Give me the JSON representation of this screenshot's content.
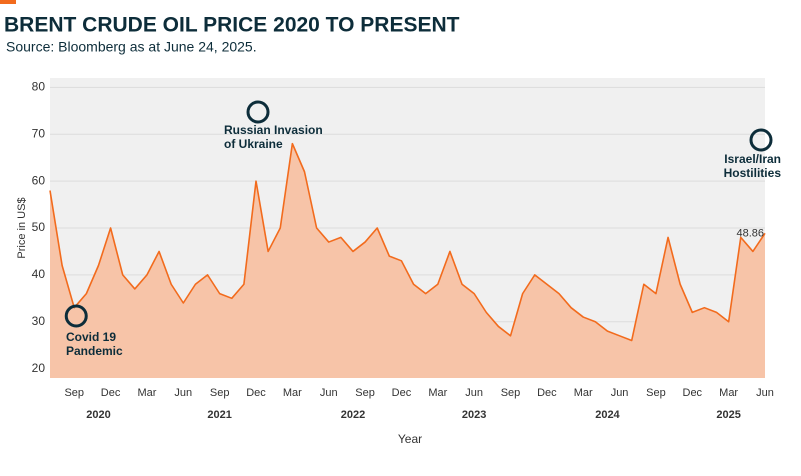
{
  "chart_data": {
    "type": "area",
    "title": "BRENT CRUDE OIL PRICE 2020 TO PRESENT",
    "subtitle": "Source: Bloomberg as at June 24, 2025.",
    "y_label": "Price in US$",
    "x_label": "Year",
    "x": [
      "2020-07",
      "2020-08",
      "2020-09",
      "2020-10",
      "2020-11",
      "2020-12",
      "2021-01",
      "2021-02",
      "2021-03",
      "2021-04",
      "2021-05",
      "2021-06",
      "2021-07",
      "2021-08",
      "2021-09",
      "2021-10",
      "2021-11",
      "2021-12",
      "2022-01",
      "2022-02",
      "2022-03",
      "2022-04",
      "2022-05",
      "2022-06",
      "2022-07",
      "2022-08",
      "2022-09",
      "2022-10",
      "2022-11",
      "2022-12",
      "2023-01",
      "2023-02",
      "2023-03",
      "2023-04",
      "2023-05",
      "2023-06",
      "2023-07",
      "2023-08",
      "2023-09",
      "2023-10",
      "2023-11",
      "2023-12",
      "2024-01",
      "2024-02",
      "2024-03",
      "2024-04",
      "2024-05",
      "2024-06",
      "2024-07",
      "2024-08",
      "2024-09",
      "2024-10",
      "2024-11",
      "2024-12",
      "2025-01",
      "2025-02",
      "2025-03",
      "2025-04",
      "2025-05",
      "2025-06"
    ],
    "series": [
      {
        "name": "Brent",
        "color": "#f26b1d",
        "fill": "#f7c4a8",
        "values": [
          58,
          42,
          33,
          36,
          42,
          50,
          40,
          37,
          40,
          45,
          38,
          34,
          38,
          40,
          36,
          35,
          38,
          60,
          45,
          50,
          68,
          62,
          50,
          47,
          48,
          45,
          47,
          50,
          44,
          43,
          38,
          36,
          38,
          45,
          38,
          36,
          32,
          29,
          27,
          36,
          40,
          38,
          36,
          33,
          31,
          30,
          28,
          27,
          26,
          38,
          36,
          48,
          38,
          32,
          33,
          32,
          30,
          48,
          45,
          48.86
        ]
      }
    ],
    "ylim": [
      18,
      82
    ],
    "yticks": [
      20,
      30,
      40,
      50,
      60,
      70,
      80
    ],
    "xticks": [
      {
        "value": "2020-09",
        "label": "Sep"
      },
      {
        "value": "2020-12",
        "label": "Dec"
      },
      {
        "value": "2021-03",
        "label": "Mar"
      },
      {
        "value": "2021-06",
        "label": "Jun"
      },
      {
        "value": "2021-09",
        "label": "Sep"
      },
      {
        "value": "2021-12",
        "label": "Dec"
      },
      {
        "value": "2022-03",
        "label": "Mar"
      },
      {
        "value": "2022-06",
        "label": "Jun"
      },
      {
        "value": "2022-09",
        "label": "Sep"
      },
      {
        "value": "2022-12",
        "label": "Dec"
      },
      {
        "value": "2023-03",
        "label": "Mar"
      },
      {
        "value": "2023-06",
        "label": "Jun"
      },
      {
        "value": "2023-09",
        "label": "Sep"
      },
      {
        "value": "2023-12",
        "label": "Dec"
      },
      {
        "value": "2024-03",
        "label": "Mar"
      },
      {
        "value": "2024-06",
        "label": "Jun"
      },
      {
        "value": "2024-09",
        "label": "Sep"
      },
      {
        "value": "2024-12",
        "label": "Dec"
      },
      {
        "value": "2025-03",
        "label": "Mar"
      },
      {
        "value": "2025-06",
        "label": "Jun"
      }
    ],
    "year_labels": [
      {
        "value": "2020-11",
        "label": "2020"
      },
      {
        "value": "2021-09",
        "label": "2021"
      },
      {
        "value": "2022-08",
        "label": "2022"
      },
      {
        "value": "2023-06",
        "label": "2023"
      },
      {
        "value": "2024-05",
        "label": "2024"
      },
      {
        "value": "2025-03",
        "label": "2025"
      }
    ],
    "grid": true,
    "annotations": [
      {
        "at": "2020-09",
        "lines": [
          "Covid 19",
          "Pandemic"
        ]
      },
      {
        "at": "2021-12",
        "lines": [
          "Russian Invasion",
          "of Ukraine"
        ]
      },
      {
        "at": "2025-06",
        "lines": [
          "Israel/Iran",
          "Hostilities"
        ]
      }
    ]
  }
}
